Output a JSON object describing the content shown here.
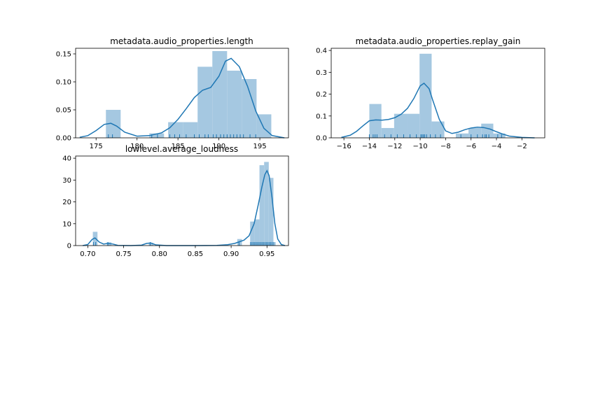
{
  "chart_data": [
    {
      "type": "histogram",
      "title": "metadata.audio_properties.length",
      "xlim": [
        172.5,
        198.5
      ],
      "ylim": [
        0,
        0.16
      ],
      "xticks": [
        175,
        180,
        185,
        190,
        195
      ],
      "xtick_labels": [
        "175",
        "180",
        "185",
        "190",
        "195"
      ],
      "yticks": [
        0,
        0.05,
        0.1,
        0.15
      ],
      "ytick_labels": [
        "0.00",
        "0.05",
        "0.10",
        "0.15"
      ],
      "bins": [
        {
          "x0": 176.2,
          "x1": 178.0,
          "value": 0.05
        },
        {
          "x0": 181.5,
          "x1": 183.3,
          "value": 0.008
        },
        {
          "x0": 183.8,
          "x1": 185.6,
          "value": 0.028
        },
        {
          "x0": 185.6,
          "x1": 187.4,
          "value": 0.028
        },
        {
          "x0": 187.4,
          "x1": 189.2,
          "value": 0.127
        },
        {
          "x0": 189.2,
          "x1": 191.0,
          "value": 0.155
        },
        {
          "x0": 191.0,
          "x1": 192.8,
          "value": 0.12
        },
        {
          "x0": 192.8,
          "x1": 194.6,
          "value": 0.105
        },
        {
          "x0": 194.6,
          "x1": 196.4,
          "value": 0.042
        }
      ],
      "kde": {
        "x": [
          173.0,
          174.0,
          175.0,
          176.0,
          176.8,
          177.5,
          178.5,
          180.0,
          181.5,
          183.0,
          184.0,
          185.0,
          186.0,
          187.0,
          188.0,
          189.0,
          190.0,
          190.8,
          191.5,
          192.5,
          193.5,
          194.5,
          195.5,
          196.5,
          198.0
        ],
        "y": [
          0.001,
          0.004,
          0.013,
          0.024,
          0.026,
          0.021,
          0.01,
          0.003,
          0.004,
          0.009,
          0.018,
          0.033,
          0.052,
          0.072,
          0.085,
          0.09,
          0.11,
          0.137,
          0.142,
          0.127,
          0.092,
          0.048,
          0.017,
          0.004,
          0.0
        ]
      },
      "rug": [
        176.5,
        177.0,
        181.8,
        182.5,
        184.0,
        184.6,
        185.2,
        186.0,
        187.0,
        187.6,
        188.3,
        188.7,
        189.3,
        189.7,
        190.2,
        190.6,
        191.0,
        191.4,
        191.8,
        192.2,
        192.6,
        193.0,
        193.8,
        194.5
      ]
    },
    {
      "type": "histogram",
      "title": "metadata.audio_properties.replay_gain",
      "xlim": [
        -17.0,
        -0.2
      ],
      "ylim": [
        0,
        0.41
      ],
      "xticks": [
        -16,
        -14,
        -12,
        -10,
        -8,
        -6,
        -4,
        -2
      ],
      "xtick_labels": [
        "−16",
        "−14",
        "−12",
        "−10",
        "−8",
        "−6",
        "−4",
        "−2"
      ],
      "yticks": [
        0,
        0.1,
        0.2,
        0.3,
        0.4
      ],
      "ytick_labels": [
        "0.0",
        "0.1",
        "0.2",
        "0.3",
        "0.4"
      ],
      "bins": [
        {
          "x0": -14.0,
          "x1": -13.05,
          "value": 0.155
        },
        {
          "x0": -13.05,
          "x1": -12.05,
          "value": 0.045
        },
        {
          "x0": -12.05,
          "x1": -11.05,
          "value": 0.11
        },
        {
          "x0": -11.05,
          "x1": -10.05,
          "value": 0.11
        },
        {
          "x0": -10.05,
          "x1": -9.1,
          "value": 0.385
        },
        {
          "x0": -9.1,
          "x1": -8.1,
          "value": 0.075
        },
        {
          "x0": -7.2,
          "x1": -6.2,
          "value": 0.02
        },
        {
          "x0": -6.2,
          "x1": -5.2,
          "value": 0.045
        },
        {
          "x0": -5.2,
          "x1": -4.25,
          "value": 0.065
        },
        {
          "x0": -4.25,
          "x1": -3.3,
          "value": 0.02
        }
      ],
      "kde": {
        "x": [
          -16.2,
          -15.5,
          -15.0,
          -14.5,
          -14.0,
          -13.5,
          -13.0,
          -12.5,
          -12.0,
          -11.5,
          -11.0,
          -10.5,
          -10.0,
          -9.7,
          -9.3,
          -9.0,
          -8.5,
          -8.0,
          -7.5,
          -7.0,
          -6.5,
          -6.0,
          -5.5,
          -5.0,
          -4.5,
          -4.0,
          -3.5,
          -3.0,
          -2.0,
          -1.0
        ],
        "y": [
          0.002,
          0.012,
          0.03,
          0.055,
          0.078,
          0.082,
          0.081,
          0.084,
          0.092,
          0.108,
          0.135,
          0.18,
          0.238,
          0.25,
          0.225,
          0.17,
          0.085,
          0.032,
          0.02,
          0.026,
          0.037,
          0.045,
          0.049,
          0.047,
          0.04,
          0.028,
          0.017,
          0.008,
          0.002,
          0.0
        ]
      },
      "rug": [
        -14.0,
        -13.7,
        -13.55,
        -13.4,
        -12.8,
        -12.3,
        -11.8,
        -11.3,
        -10.8,
        -10.3,
        -9.95,
        -9.85,
        -9.75,
        -9.65,
        -9.5,
        -9.2,
        -8.8,
        -8.4,
        -6.8,
        -6.0,
        -5.5,
        -5.1,
        -4.9,
        -4.8,
        -4.6,
        -3.9,
        -3.6
      ]
    },
    {
      "type": "histogram",
      "title": "lowlevel.average_loudness",
      "xlim": [
        0.683,
        0.98
      ],
      "ylim": [
        0,
        41
      ],
      "xticks": [
        0.7,
        0.75,
        0.8,
        0.85,
        0.9,
        0.95
      ],
      "xtick_labels": [
        "0.70",
        "0.75",
        "0.80",
        "0.85",
        "0.90",
        "0.95"
      ],
      "yticks": [
        0,
        10,
        20,
        30,
        40
      ],
      "ytick_labels": [
        "0",
        "10",
        "20",
        "30",
        "40"
      ],
      "bins": [
        {
          "x0": 0.707,
          "x1": 0.7135,
          "value": 6.3
        },
        {
          "x0": 0.7265,
          "x1": 0.733,
          "value": 1.5
        },
        {
          "x0": 0.785,
          "x1": 0.7915,
          "value": 1.2
        },
        {
          "x0": 0.9085,
          "x1": 0.915,
          "value": 3.0
        },
        {
          "x0": 0.9265,
          "x1": 0.933,
          "value": 11.0
        },
        {
          "x0": 0.933,
          "x1": 0.9395,
          "value": 12.0
        },
        {
          "x0": 0.9395,
          "x1": 0.946,
          "value": 36.8
        },
        {
          "x0": 0.946,
          "x1": 0.9525,
          "value": 38.3
        },
        {
          "x0": 0.9525,
          "x1": 0.959,
          "value": 31.0
        }
      ],
      "kde": {
        "x": [
          0.693,
          0.7,
          0.706,
          0.71,
          0.716,
          0.722,
          0.728,
          0.735,
          0.742,
          0.76,
          0.775,
          0.782,
          0.788,
          0.795,
          0.81,
          0.85,
          0.88,
          0.895,
          0.905,
          0.912,
          0.918,
          0.925,
          0.932,
          0.938,
          0.943,
          0.947,
          0.95,
          0.953,
          0.957,
          0.961,
          0.965,
          0.97,
          0.975
        ],
        "y": [
          0.0,
          0.5,
          2.8,
          3.5,
          1.6,
          0.7,
          1.0,
          0.7,
          0.1,
          0.0,
          0.2,
          1.0,
          1.2,
          0.3,
          0.0,
          0.0,
          0.1,
          0.4,
          1.0,
          1.8,
          2.5,
          4.5,
          10.0,
          19.0,
          27.0,
          32.5,
          34.3,
          32.0,
          22.0,
          10.0,
          3.0,
          0.5,
          0.0
        ]
      },
      "rug": [
        0.708,
        0.711,
        0.728,
        0.787,
        0.911,
        0.927,
        0.929,
        0.931,
        0.933,
        0.935,
        0.937,
        0.939,
        0.941,
        0.943,
        0.945,
        0.947,
        0.949,
        0.951,
        0.953,
        0.955,
        0.957,
        0.959,
        0.961
      ]
    }
  ],
  "colors": {
    "bar": "#a5c8e1",
    "line": "#1f77b4"
  }
}
